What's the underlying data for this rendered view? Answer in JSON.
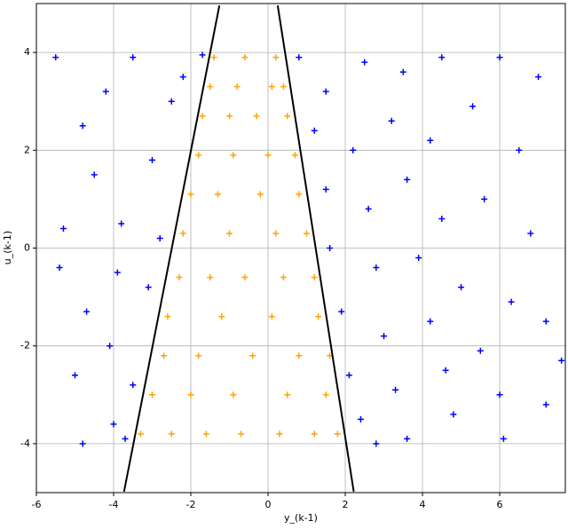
{
  "chart_data": {
    "type": "scatter",
    "xlabel": "y_(k-1)",
    "ylabel": "u_(k-1)",
    "xlim": [
      -6,
      7.7
    ],
    "ylim": [
      -5,
      5
    ],
    "xticks": [
      -6,
      -4,
      -2,
      0,
      2,
      4,
      6
    ],
    "yticks": [
      -4,
      -2,
      0,
      2,
      4
    ],
    "grid": true,
    "series": [
      {
        "color": "#ffa500",
        "marker": "+",
        "x": [
          -3.3,
          -2.5,
          -1.6,
          -0.7,
          0.3,
          1.2,
          1.8,
          -3.0,
          -2.0,
          -0.9,
          0.5,
          1.5,
          -2.7,
          -1.8,
          -0.4,
          0.8,
          1.6,
          -2.6,
          -1.2,
          0.1,
          1.3,
          -2.3,
          -1.5,
          -0.6,
          0.4,
          1.2,
          -2.2,
          -1.0,
          0.2,
          1.0,
          -2.0,
          -1.3,
          -0.2,
          0.8,
          -1.8,
          -0.9,
          0.0,
          0.7,
          -1.7,
          -1.0,
          -0.3,
          0.5,
          -1.5,
          -0.8,
          0.1,
          0.4,
          -1.4,
          -0.6,
          0.2
        ],
        "y": [
          -3.8,
          -3.8,
          -3.8,
          -3.8,
          -3.8,
          -3.8,
          -3.8,
          -3.0,
          -3.0,
          -3.0,
          -3.0,
          -3.0,
          -2.2,
          -2.2,
          -2.2,
          -2.2,
          -2.2,
          -1.4,
          -1.4,
          -1.4,
          -1.4,
          -0.6,
          -0.6,
          -0.6,
          -0.6,
          -0.6,
          0.3,
          0.3,
          0.3,
          0.3,
          1.1,
          1.1,
          1.1,
          1.1,
          1.9,
          1.9,
          1.9,
          1.9,
          2.7,
          2.7,
          2.7,
          2.7,
          3.3,
          3.3,
          3.3,
          3.3,
          3.9,
          3.9,
          3.9
        ]
      },
      {
        "color": "#0000ff",
        "marker": "+",
        "x": [
          -5.5,
          -4.8,
          -4.2,
          -3.5,
          -2.5,
          -5.3,
          -4.5,
          -3.8,
          -3.0,
          -5.4,
          -4.7,
          -3.9,
          -3.1,
          -5.0,
          -4.1,
          -3.5,
          -4.8,
          -4.0,
          -3.7,
          -2.8,
          -2.2,
          -1.7,
          0.8,
          1.5,
          2.5,
          3.5,
          4.5,
          6.0,
          7.0,
          1.2,
          2.2,
          3.2,
          4.2,
          5.3,
          6.5,
          1.5,
          2.6,
          3.6,
          4.5,
          5.6,
          6.8,
          1.6,
          2.8,
          3.9,
          5.0,
          6.3,
          7.2,
          1.9,
          3.0,
          4.2,
          5.5,
          7.6,
          2.1,
          3.3,
          4.6,
          6.0,
          2.4,
          3.6,
          4.8,
          6.1,
          7.2,
          2.8
        ],
        "y": [
          3.9,
          2.5,
          3.2,
          3.9,
          3.0,
          0.4,
          1.5,
          0.5,
          1.8,
          -0.4,
          -1.3,
          -0.5,
          -0.8,
          -2.6,
          -2.0,
          -2.8,
          -4.0,
          -3.6,
          -3.9,
          0.2,
          3.5,
          3.95,
          3.9,
          3.2,
          3.8,
          3.6,
          3.9,
          3.9,
          3.5,
          2.4,
          2.0,
          2.6,
          2.2,
          2.9,
          2.0,
          1.2,
          0.8,
          1.4,
          0.6,
          1.0,
          0.3,
          0.0,
          -0.4,
          -0.2,
          -0.8,
          -1.1,
          -1.5,
          -1.3,
          -1.8,
          -1.5,
          -2.1,
          -2.3,
          -2.6,
          -2.9,
          -2.5,
          -3.0,
          -3.5,
          -3.9,
          -3.4,
          -3.9,
          -3.2,
          -4.0
        ]
      }
    ],
    "lines": [
      {
        "color": "#000000",
        "x": [
          -3.73,
          -1.26
        ],
        "y": [
          -4.98,
          4.96
        ]
      },
      {
        "color": "#000000",
        "x": [
          0.25,
          2.22
        ],
        "y": [
          4.96,
          -4.98
        ]
      }
    ]
  }
}
